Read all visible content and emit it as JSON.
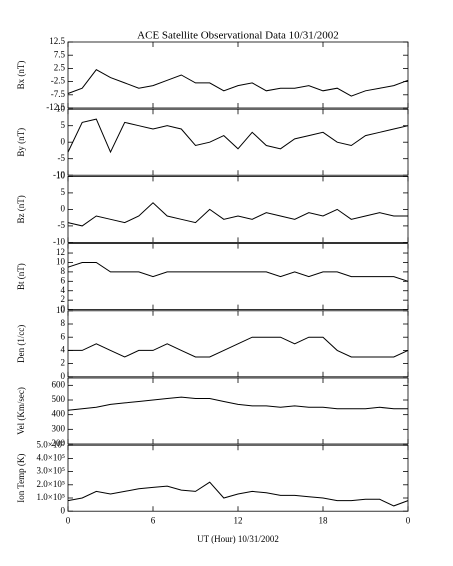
{
  "title": "ACE Satellite Observational Data   10/31/2002",
  "xlabel": "UT (Hour)  10/31/2002",
  "xticks": [
    0,
    6,
    12,
    18,
    {
      "value": 24,
      "label": "0"
    }
  ],
  "xlim": [
    0,
    24
  ],
  "chart_data": [
    {
      "type": "line",
      "ylabel": "Bx (nT)",
      "ylim": [
        -12.5,
        12.5
      ],
      "yticks": [
        -12.5,
        -7.5,
        -2.5,
        2.5,
        7.5,
        12.5
      ],
      "color": "#000000",
      "x": [
        0,
        1,
        2,
        3,
        4,
        5,
        6,
        7,
        8,
        9,
        10,
        11,
        12,
        13,
        14,
        15,
        16,
        17,
        18,
        19,
        20,
        21,
        22,
        23,
        24
      ],
      "values": [
        -7,
        -5,
        2,
        -1,
        -3,
        -5,
        -4,
        -2,
        0,
        -3,
        -3,
        -6,
        -4,
        -3,
        -6,
        -5,
        -5,
        -4,
        -6,
        -5,
        -8,
        -6,
        -5,
        -4,
        -2
      ]
    },
    {
      "type": "line",
      "ylabel": "By (nT)",
      "ylim": [
        -10,
        10
      ],
      "yticks": [
        -10,
        -5,
        0,
        5,
        10
      ],
      "color": "#000000",
      "x": [
        0,
        1,
        2,
        3,
        4,
        5,
        6,
        7,
        8,
        9,
        10,
        11,
        12,
        13,
        14,
        15,
        16,
        17,
        18,
        19,
        20,
        21,
        22,
        23,
        24
      ],
      "values": [
        -3,
        6,
        7,
        -3,
        6,
        5,
        4,
        5,
        4,
        -1,
        0,
        2,
        -2,
        3,
        -1,
        -2,
        1,
        2,
        3,
        0,
        -1,
        2,
        3,
        4,
        5
      ]
    },
    {
      "type": "line",
      "ylabel": "Bz (nT)",
      "ylim": [
        -10,
        10
      ],
      "yticks": [
        -10,
        -5,
        0,
        5,
        10
      ],
      "color": "#000000",
      "x": [
        0,
        1,
        2,
        3,
        4,
        5,
        6,
        7,
        8,
        9,
        10,
        11,
        12,
        13,
        14,
        15,
        16,
        17,
        18,
        19,
        20,
        21,
        22,
        23,
        24
      ],
      "values": [
        -4,
        -5,
        -2,
        -3,
        -4,
        -2,
        2,
        -2,
        -3,
        -4,
        0,
        -3,
        -2,
        -3,
        -1,
        -2,
        -3,
        -1,
        -2,
        0,
        -3,
        -2,
        -1,
        -2,
        -2
      ]
    },
    {
      "type": "line",
      "ylabel": "Bt (nT)",
      "ylim": [
        0,
        14
      ],
      "yticks": [
        0,
        2,
        4,
        6,
        8,
        10,
        12
      ],
      "color": "#000000",
      "x": [
        0,
        1,
        2,
        3,
        4,
        5,
        6,
        7,
        8,
        9,
        10,
        11,
        12,
        13,
        14,
        15,
        16,
        17,
        18,
        19,
        20,
        21,
        22,
        23,
        24
      ],
      "values": [
        9,
        10,
        10,
        8,
        8,
        8,
        7,
        8,
        8,
        8,
        8,
        8,
        8,
        8,
        8,
        7,
        8,
        7,
        8,
        8,
        7,
        7,
        7,
        7,
        6
      ]
    },
    {
      "type": "line",
      "ylabel": "Den (1/cc)",
      "ylim": [
        0,
        10
      ],
      "yticks": [
        0,
        2,
        4,
        6,
        8,
        10
      ],
      "color": "#000000",
      "x": [
        0,
        1,
        2,
        3,
        4,
        5,
        6,
        7,
        8,
        9,
        10,
        11,
        12,
        13,
        14,
        15,
        16,
        17,
        18,
        19,
        20,
        21,
        22,
        23,
        24
      ],
      "values": [
        4,
        4,
        5,
        4,
        3,
        4,
        4,
        5,
        4,
        3,
        3,
        4,
        5,
        6,
        6,
        6,
        5,
        6,
        6,
        4,
        3,
        3,
        3,
        3,
        4
      ]
    },
    {
      "type": "line",
      "ylabel": "Vel (Km/sec)",
      "ylim": [
        200,
        650
      ],
      "yticks": [
        200,
        300,
        400,
        500,
        600
      ],
      "color": "#000000",
      "x": [
        0,
        1,
        2,
        3,
        4,
        5,
        6,
        7,
        8,
        9,
        10,
        11,
        12,
        13,
        14,
        15,
        16,
        17,
        18,
        19,
        20,
        21,
        22,
        23,
        24
      ],
      "values": [
        430,
        440,
        450,
        470,
        480,
        490,
        500,
        510,
        520,
        510,
        510,
        490,
        470,
        460,
        460,
        450,
        460,
        450,
        450,
        440,
        440,
        440,
        450,
        440,
        440
      ]
    },
    {
      "type": "line",
      "ylabel": "Ion Temp (K)",
      "ylim": [
        0,
        500000
      ],
      "yticks": [
        0,
        {
          "value": 100000,
          "label": "1.0×10⁵"
        },
        {
          "value": 200000,
          "label": "2.0×10⁵"
        },
        {
          "value": 300000,
          "label": "3.0×10⁵"
        },
        {
          "value": 400000,
          "label": "4.0×10⁵"
        },
        {
          "value": 500000,
          "label": "5.0×10⁵"
        }
      ],
      "color": "#000000",
      "x": [
        0,
        1,
        2,
        3,
        4,
        5,
        6,
        7,
        8,
        9,
        10,
        11,
        12,
        13,
        14,
        15,
        16,
        17,
        18,
        19,
        20,
        21,
        22,
        23,
        24
      ],
      "values": [
        80000,
        100000,
        150000,
        130000,
        150000,
        170000,
        180000,
        190000,
        160000,
        150000,
        220000,
        100000,
        130000,
        150000,
        140000,
        120000,
        120000,
        110000,
        100000,
        80000,
        80000,
        90000,
        90000,
        40000,
        80000
      ]
    }
  ]
}
